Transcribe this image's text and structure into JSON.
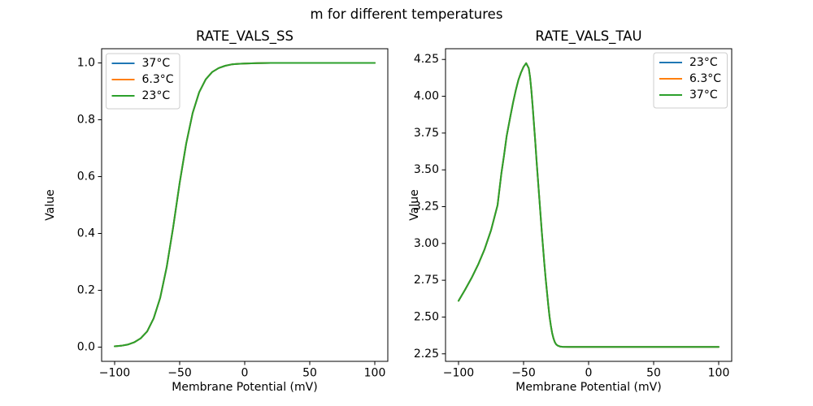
{
  "figure": {
    "suptitle": "m for different temperatures",
    "background": "#ffffff",
    "text_color": "#000000"
  },
  "palette": {
    "blue": "#1f77b4",
    "orange": "#ff7f0e",
    "green": "#2ca02c",
    "axis_color": "#000000",
    "legend_border": "#cccccc",
    "legend_fill": "rgba(255,255,255,0.8)"
  },
  "chart_data": [
    {
      "type": "line",
      "title": "RATE_VALS_SS",
      "xlabel": "Membrane Potential (mV)",
      "ylabel": "Value",
      "xlim": [
        -110,
        110
      ],
      "ylim": [
        -0.05,
        1.05
      ],
      "xticks": [
        -100,
        -50,
        0,
        50,
        100
      ],
      "xtick_labels": [
        "−100",
        "−50",
        "0",
        "50",
        "100"
      ],
      "yticks": [
        0.0,
        0.2,
        0.4,
        0.6,
        0.8,
        1.0
      ],
      "ytick_labels": [
        "0.0",
        "0.2",
        "0.4",
        "0.6",
        "0.8",
        "1.0"
      ],
      "grid": false,
      "legend_position": "upper left",
      "note": "All three temperature curves are identical and overlap exactly; only the last-drawn green curve is visible.",
      "x": [
        -100,
        -95,
        -90,
        -85,
        -80,
        -75,
        -70,
        -65,
        -60,
        -55,
        -50,
        -45,
        -40,
        -35,
        -30,
        -25,
        -20,
        -15,
        -10,
        -5,
        0,
        10,
        20,
        30,
        40,
        50,
        60,
        70,
        80,
        90,
        100
      ],
      "series": [
        {
          "name": "37°C",
          "color": "#1f77b4",
          "values": [
            0.003,
            0.005,
            0.009,
            0.017,
            0.031,
            0.055,
            0.101,
            0.173,
            0.281,
            0.422,
            0.578,
            0.716,
            0.824,
            0.897,
            0.942,
            0.968,
            0.982,
            0.99,
            0.995,
            0.997,
            0.998,
            0.9995,
            1.0,
            1.0,
            1.0,
            1.0,
            1.0,
            1.0,
            1.0,
            1.0,
            1.0
          ]
        },
        {
          "name": "6.3°C",
          "color": "#ff7f0e",
          "values": [
            0.003,
            0.005,
            0.009,
            0.017,
            0.031,
            0.055,
            0.101,
            0.173,
            0.281,
            0.422,
            0.578,
            0.716,
            0.824,
            0.897,
            0.942,
            0.968,
            0.982,
            0.99,
            0.995,
            0.997,
            0.998,
            0.9995,
            1.0,
            1.0,
            1.0,
            1.0,
            1.0,
            1.0,
            1.0,
            1.0,
            1.0
          ]
        },
        {
          "name": "23°C",
          "color": "#2ca02c",
          "values": [
            0.003,
            0.005,
            0.009,
            0.017,
            0.031,
            0.055,
            0.101,
            0.173,
            0.281,
            0.422,
            0.578,
            0.716,
            0.824,
            0.897,
            0.942,
            0.968,
            0.982,
            0.99,
            0.995,
            0.997,
            0.998,
            0.9995,
            1.0,
            1.0,
            1.0,
            1.0,
            1.0,
            1.0,
            1.0,
            1.0,
            1.0
          ]
        }
      ]
    },
    {
      "type": "line",
      "title": "RATE_VALS_TAU",
      "xlabel": "Membrane Potential (mV)",
      "ylabel": "Value",
      "xlim": [
        -110,
        110
      ],
      "ylim": [
        2.199,
        4.323
      ],
      "xticks": [
        -100,
        -50,
        0,
        50,
        100
      ],
      "xtick_labels": [
        "−100",
        "−50",
        "0",
        "50",
        "100"
      ],
      "yticks": [
        2.25,
        2.5,
        2.75,
        3.0,
        3.25,
        3.5,
        3.75,
        4.0,
        4.25
      ],
      "ytick_labels": [
        "2.25",
        "2.50",
        "2.75",
        "3.00",
        "3.25",
        "3.50",
        "3.75",
        "4.00",
        "4.25"
      ],
      "grid": false,
      "legend_position": "upper right",
      "note": "All three temperature curves are identical and overlap exactly; only the last-drawn green curve is visible. Peak ≈ 4.22 at ≈ −48 mV, plateau ≈ 2.30 for V > −25 mV.",
      "x": [
        -100,
        -95,
        -90,
        -85,
        -80,
        -75,
        -70,
        -67,
        -65,
        -63,
        -60,
        -58,
        -56,
        -54,
        -52,
        -50,
        -48,
        -46,
        -45,
        -44,
        -43,
        -42,
        -41,
        -40,
        -39,
        -38,
        -37,
        -36,
        -35,
        -34,
        -33,
        -32,
        -31,
        -30,
        -29,
        -28,
        -27,
        -26,
        -25,
        -24,
        -22,
        -20,
        -15,
        -10,
        0,
        10,
        20,
        30,
        40,
        50,
        60,
        70,
        80,
        90,
        100
      ],
      "series": [
        {
          "name": "23°C",
          "color": "#1f77b4",
          "values": [
            2.61,
            2.685,
            2.765,
            2.855,
            2.96,
            3.09,
            3.26,
            3.48,
            3.6,
            3.73,
            3.87,
            3.96,
            4.04,
            4.11,
            4.16,
            4.2,
            4.225,
            4.19,
            4.13,
            4.04,
            3.93,
            3.81,
            3.69,
            3.56,
            3.44,
            3.32,
            3.2,
            3.08,
            2.97,
            2.86,
            2.76,
            2.67,
            2.58,
            2.5,
            2.44,
            2.39,
            2.355,
            2.33,
            2.315,
            2.307,
            2.3,
            2.298,
            2.297,
            2.297,
            2.297,
            2.297,
            2.297,
            2.297,
            2.297,
            2.297,
            2.297,
            2.297,
            2.297,
            2.297,
            2.297
          ]
        },
        {
          "name": "6.3°C",
          "color": "#ff7f0e",
          "values": [
            2.61,
            2.685,
            2.765,
            2.855,
            2.96,
            3.09,
            3.26,
            3.48,
            3.6,
            3.73,
            3.87,
            3.96,
            4.04,
            4.11,
            4.16,
            4.2,
            4.225,
            4.19,
            4.13,
            4.04,
            3.93,
            3.81,
            3.69,
            3.56,
            3.44,
            3.32,
            3.2,
            3.08,
            2.97,
            2.86,
            2.76,
            2.67,
            2.58,
            2.5,
            2.44,
            2.39,
            2.355,
            2.33,
            2.315,
            2.307,
            2.3,
            2.298,
            2.297,
            2.297,
            2.297,
            2.297,
            2.297,
            2.297,
            2.297,
            2.297,
            2.297,
            2.297,
            2.297,
            2.297,
            2.297
          ]
        },
        {
          "name": "37°C",
          "color": "#2ca02c",
          "values": [
            2.61,
            2.685,
            2.765,
            2.855,
            2.96,
            3.09,
            3.26,
            3.48,
            3.6,
            3.73,
            3.87,
            3.96,
            4.04,
            4.11,
            4.16,
            4.2,
            4.225,
            4.19,
            4.13,
            4.04,
            3.93,
            3.81,
            3.69,
            3.56,
            3.44,
            3.32,
            3.2,
            3.08,
            2.97,
            2.86,
            2.76,
            2.67,
            2.58,
            2.5,
            2.44,
            2.39,
            2.355,
            2.33,
            2.315,
            2.307,
            2.3,
            2.298,
            2.297,
            2.297,
            2.297,
            2.297,
            2.297,
            2.297,
            2.297,
            2.297,
            2.297,
            2.297,
            2.297,
            2.297,
            2.297
          ]
        }
      ]
    }
  ]
}
